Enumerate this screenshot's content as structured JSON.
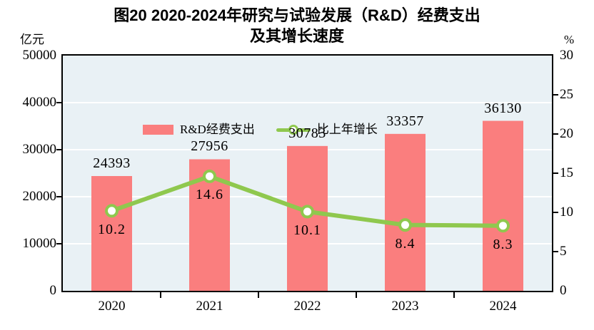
{
  "title": {
    "line1": "图20  2020-2024年研究与试验发展（R&D）经费支出",
    "line2": "及其增长速度"
  },
  "left_axis": {
    "unit": "亿元",
    "tick_labels": [
      "0",
      "10000",
      "20000",
      "30000",
      "40000",
      "50000"
    ],
    "ticks": [
      0,
      10000,
      20000,
      30000,
      40000,
      50000
    ],
    "max": 50000
  },
  "right_axis": {
    "unit": "%",
    "tick_labels": [
      "0",
      "5",
      "10",
      "15",
      "20",
      "25",
      "30"
    ],
    "ticks": [
      0,
      5,
      10,
      15,
      20,
      25,
      30
    ],
    "max": 30
  },
  "legend": [
    {
      "label": "R&D经费支出",
      "type": "bar"
    },
    {
      "label": "比上年增长",
      "type": "line"
    }
  ],
  "colors": {
    "bar": "#fa7e7e",
    "line": "#8fc84e",
    "marker_fill": "#ffffff",
    "plot_background": "#e9f1f5",
    "gridline": "#ffffff",
    "axis": "#000000",
    "text": "#000000"
  },
  "chart_data": {
    "type": "bar+line",
    "title": "图20 2020-2024年研究与试验发展（R&D）经费支出及其增长速度",
    "categories": [
      "2020",
      "2021",
      "2022",
      "2023",
      "2024"
    ],
    "series": [
      {
        "name": "R&D经费支出",
        "type": "bar",
        "axis": "left",
        "unit": "亿元",
        "values": [
          24393,
          27956,
          30783,
          33357,
          36130
        ],
        "labels": [
          "24393",
          "27956",
          "30783",
          "33357",
          "36130"
        ]
      },
      {
        "name": "比上年增长",
        "type": "line",
        "axis": "right",
        "unit": "%",
        "values": [
          10.2,
          14.6,
          10.1,
          8.4,
          8.3
        ],
        "labels": [
          "10.2",
          "14.6",
          "10.1",
          "8.4",
          "8.3"
        ]
      }
    ],
    "left_ylim": [
      0,
      50000
    ],
    "right_ylim": [
      0,
      30
    ],
    "grid": "horizontal white lines at left-axis ticks, behind bars",
    "legend_position": "top-left inside plot"
  }
}
